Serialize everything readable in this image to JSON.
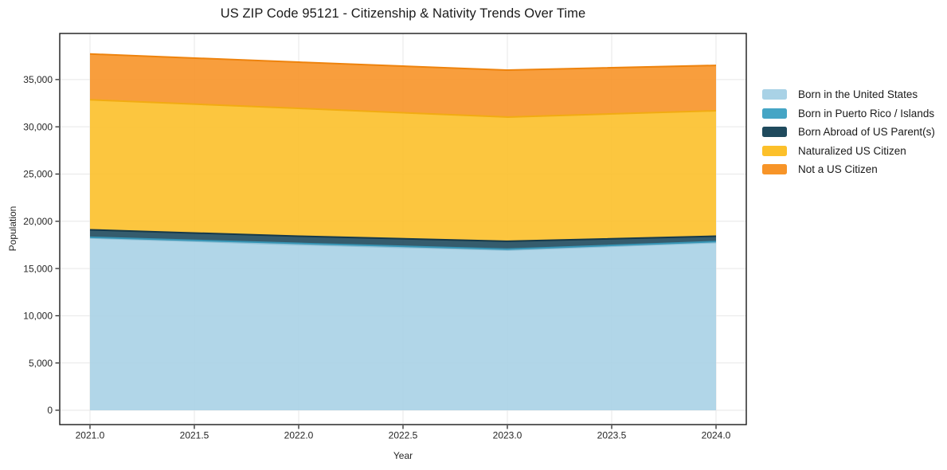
{
  "chart_data": {
    "type": "area",
    "stacked": true,
    "title": "US ZIP Code 95121 - Citizenship & Nativity Trends Over Time",
    "xlabel": "Year",
    "ylabel": "Population",
    "x": [
      2021,
      2022,
      2023,
      2024
    ],
    "series": [
      {
        "name": "Born in the United States",
        "color": "#a9d2e6",
        "edge_color": "#8fc0d6",
        "values": [
          18230,
          17530,
          16950,
          17750
        ]
      },
      {
        "name": "Born in Puerto Rico / Islands",
        "color": "#45a5c5",
        "edge_color": "#3795b5",
        "values": [
          80,
          130,
          100,
          100
        ]
      },
      {
        "name": "Born Abroad of US Parent(s)",
        "color": "#1f4a5d",
        "edge_color": "#16394a",
        "values": [
          790,
          760,
          830,
          570
        ]
      },
      {
        "name": "Naturalized US Citizen",
        "color": "#fcc02a",
        "edge_color": "#f2ab12",
        "values": [
          13760,
          13530,
          13150,
          13280
        ]
      },
      {
        "name": "Not a US Citizen",
        "color": "#f79428",
        "edge_color": "#ee830d",
        "values": [
          4850,
          4890,
          4970,
          4800
        ]
      }
    ],
    "totals": [
      37710,
      36840,
      36000,
      36500
    ],
    "x_ticks": [
      2021.0,
      2021.5,
      2022.0,
      2022.5,
      2023.0,
      2023.5,
      2024.0
    ],
    "x_tick_labels": [
      "2021.0",
      "2021.5",
      "2022.0",
      "2022.5",
      "2023.0",
      "2023.5",
      "2024.0"
    ],
    "y_ticks": [
      0,
      5000,
      10000,
      15000,
      20000,
      25000,
      30000,
      35000
    ],
    "y_tick_labels": [
      "0",
      "5,000",
      "10,000",
      "15,000",
      "20,000",
      "25,000",
      "30,000",
      "35,000"
    ],
    "xlim": [
      2020.855,
      2024.145
    ],
    "ylim": [
      -1520,
      39880
    ],
    "grid": true,
    "grid_color": "#e7e7e7",
    "spine_color": "#1a1a1a",
    "legend_position": "right"
  }
}
